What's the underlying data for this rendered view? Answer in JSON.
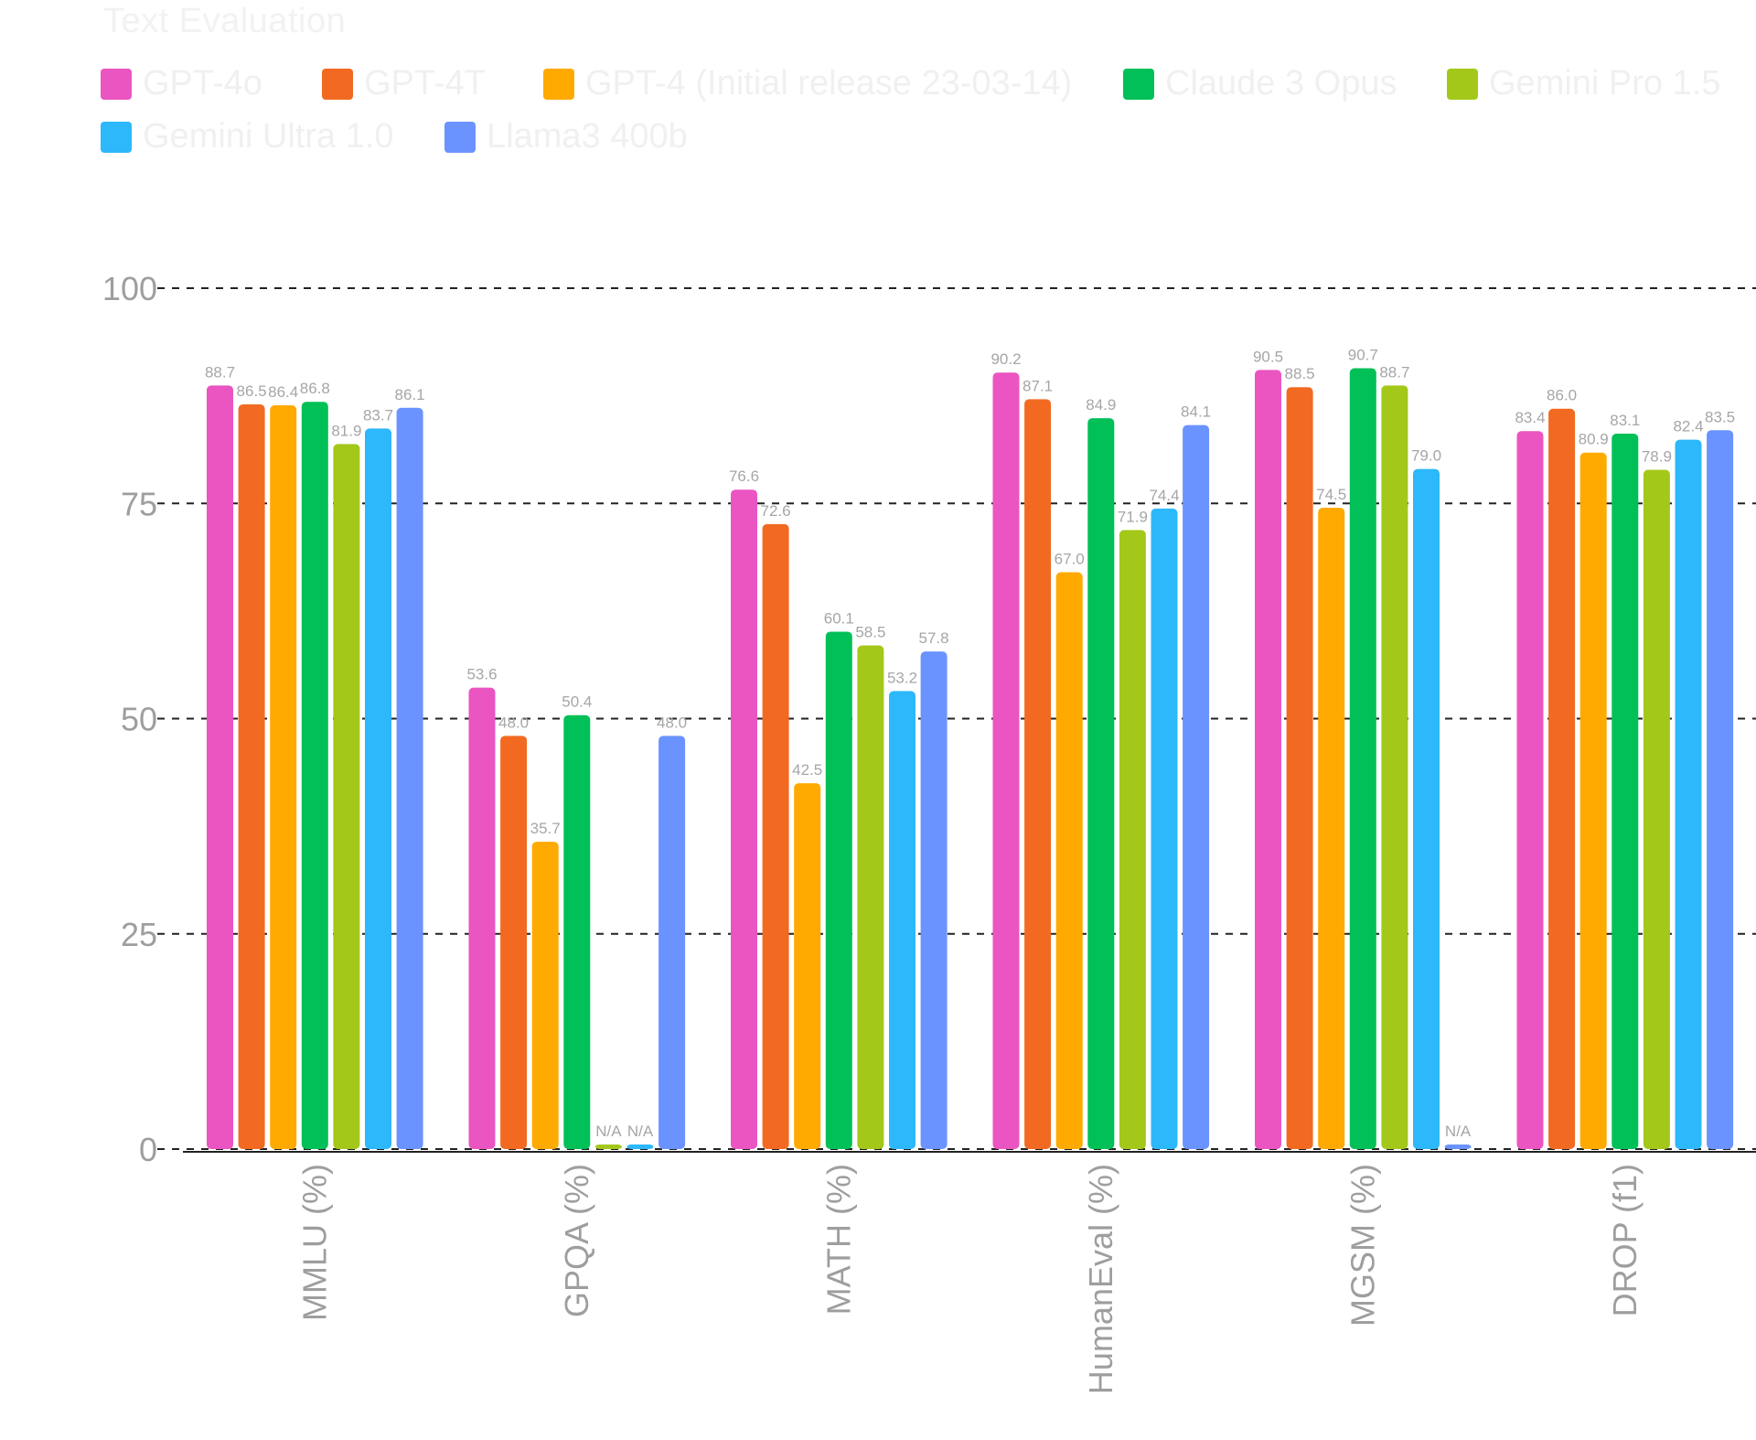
{
  "chart_data": {
    "type": "bar",
    "title": "Text Evaluation",
    "xlabel": "",
    "ylabel": "",
    "ylim": [
      0,
      100
    ],
    "yticks": [
      0,
      25,
      50,
      75,
      100
    ],
    "grid": true,
    "legend_position": "top-left",
    "categories": [
      "MMLU (%)",
      "GPQA (%)",
      "MATH (%)",
      "HumanEval (%)",
      "MGSM (%)",
      "DROP (f1)"
    ],
    "series": [
      {
        "name": "GPT-4o",
        "color": "#ea55c1",
        "values": [
          88.7,
          53.6,
          76.6,
          90.2,
          90.5,
          83.4
        ],
        "labels": [
          "88.7",
          "53.6",
          "76.6",
          "90.2",
          "90.5",
          "83.4"
        ]
      },
      {
        "name": "GPT-4T",
        "color": "#f26a22",
        "values": [
          86.5,
          48.0,
          72.6,
          87.1,
          88.5,
          86.0
        ],
        "labels": [
          "86.5",
          "48.0",
          "72.6",
          "87.1",
          "88.5",
          "86.0"
        ]
      },
      {
        "name": "GPT-4 (Initial release 23-03-14)",
        "color": "#ffaa00",
        "values": [
          86.4,
          35.7,
          42.5,
          67.0,
          74.5,
          80.9
        ],
        "labels": [
          "86.4",
          "35.7",
          "42.5",
          "67.0",
          "74.5",
          "80.9"
        ]
      },
      {
        "name": "Claude 3 Opus",
        "color": "#00c057",
        "values": [
          86.8,
          50.4,
          60.1,
          84.9,
          90.7,
          83.1
        ],
        "labels": [
          "86.8",
          "50.4",
          "60.1",
          "84.9",
          "90.7",
          "83.1"
        ]
      },
      {
        "name": "Gemini Pro 1.5",
        "color": "#a3c81a",
        "values": [
          81.9,
          0,
          58.5,
          71.9,
          88.7,
          78.9
        ],
        "labels": [
          "81.9",
          "N/A",
          "58.5",
          "71.9",
          "88.7",
          "78.9"
        ]
      },
      {
        "name": "Gemini Ultra 1.0",
        "color": "#2cb8fa",
        "values": [
          83.7,
          0,
          53.2,
          74.4,
          79.0,
          82.4
        ],
        "labels": [
          "83.7",
          "N/A",
          "53.2",
          "74.4",
          "79.0",
          "82.4"
        ]
      },
      {
        "name": "Llama3 400b",
        "color": "#6b93ff",
        "values": [
          86.1,
          48.0,
          57.8,
          84.1,
          0,
          83.5
        ],
        "labels": [
          "86.1",
          "48.0",
          "57.8",
          "84.1",
          "N/A",
          "83.5"
        ]
      }
    ]
  }
}
